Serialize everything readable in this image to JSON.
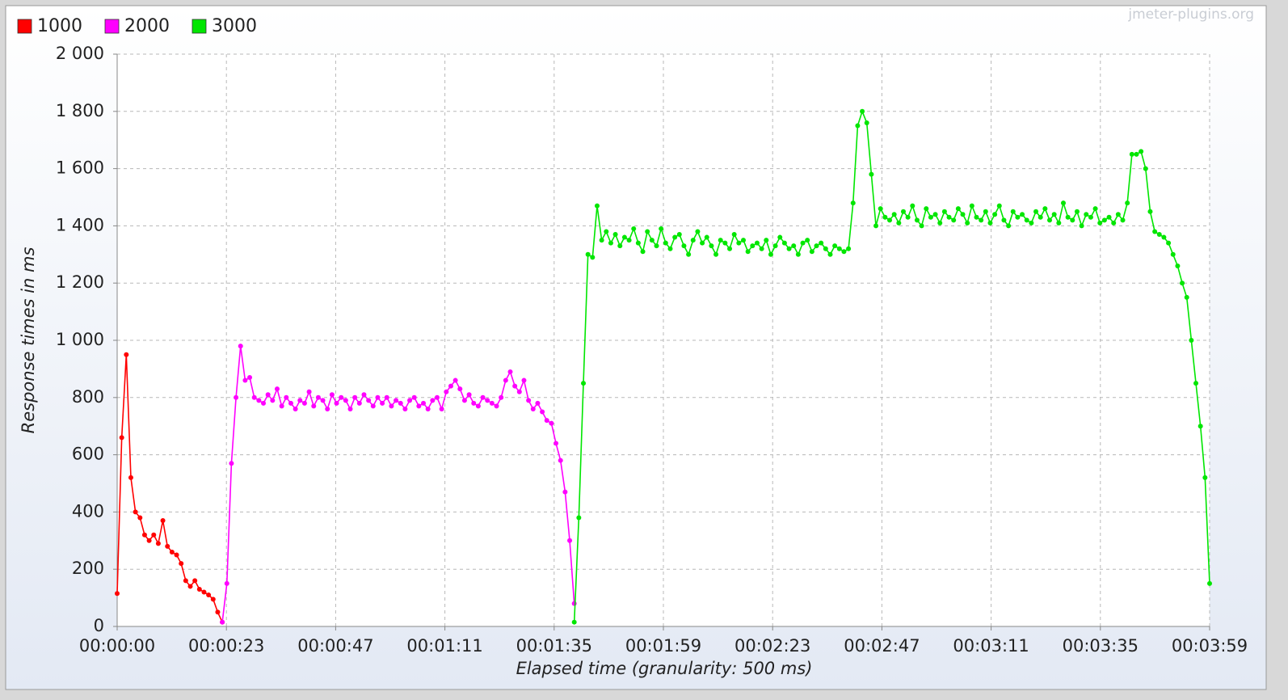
{
  "chart_data": {
    "type": "line",
    "watermark": "jmeter-plugins.org",
    "x_label": "Elapsed time (granularity: 500 ms)",
    "y_label": "Response times in ms",
    "xlim": [
      0,
      239
    ],
    "ylim": [
      0,
      2000
    ],
    "xticks": [
      {
        "value": 0,
        "label": "00:00:00"
      },
      {
        "value": 23.9,
        "label": "00:00:23"
      },
      {
        "value": 47.8,
        "label": "00:00:47"
      },
      {
        "value": 71.7,
        "label": "00:01:11"
      },
      {
        "value": 95.6,
        "label": "00:01:35"
      },
      {
        "value": 119.5,
        "label": "00:01:59"
      },
      {
        "value": 143.4,
        "label": "00:02:23"
      },
      {
        "value": 167.3,
        "label": "00:02:47"
      },
      {
        "value": 191.2,
        "label": "00:03:11"
      },
      {
        "value": 215.1,
        "label": "00:03:35"
      },
      {
        "value": 239,
        "label": "00:03:59"
      }
    ],
    "yticks": [
      0,
      200,
      400,
      600,
      800,
      {
        "value": 1000,
        "label": "1 000"
      },
      {
        "value": 1200,
        "label": "1 200"
      },
      {
        "value": 1400,
        "label": "1 400"
      },
      {
        "value": 1600,
        "label": "1 600"
      },
      {
        "value": 1800,
        "label": "1 800"
      },
      {
        "value": 2000,
        "label": "2 000"
      }
    ],
    "grid": true,
    "legend": "top-left",
    "series": [
      {
        "name": "1000",
        "color": "#ff0000",
        "x": [
          0,
          1,
          2,
          3,
          4,
          5,
          6,
          7,
          8,
          9,
          10,
          11,
          12,
          13,
          14,
          15,
          16,
          17,
          18,
          19,
          20,
          21,
          22,
          23
        ],
        "values": [
          115,
          660,
          950,
          520,
          400,
          380,
          320,
          300,
          320,
          290,
          370,
          280,
          260,
          250,
          220,
          160,
          140,
          160,
          130,
          120,
          110,
          95,
          50,
          15
        ]
      },
      {
        "name": "2000",
        "color": "#ff00ff",
        "x": [
          23,
          24,
          25,
          26,
          27,
          28,
          29,
          30,
          31,
          32,
          33,
          34,
          35,
          36,
          37,
          38,
          39,
          40,
          41,
          42,
          43,
          44,
          45,
          46,
          47,
          48,
          49,
          50,
          51,
          52,
          53,
          54,
          55,
          56,
          57,
          58,
          59,
          60,
          61,
          62,
          63,
          64,
          65,
          66,
          67,
          68,
          69,
          70,
          71,
          72,
          73,
          74,
          75,
          76,
          77,
          78,
          79,
          80,
          81,
          82,
          83,
          84,
          85,
          86,
          87,
          88,
          89,
          90,
          91,
          92,
          93,
          94,
          95,
          96,
          97,
          98,
          99,
          100
        ],
        "values": [
          15,
          150,
          570,
          800,
          980,
          860,
          870,
          800,
          790,
          780,
          810,
          790,
          830,
          770,
          800,
          780,
          760,
          790,
          780,
          820,
          770,
          800,
          790,
          760,
          810,
          780,
          800,
          790,
          760,
          800,
          780,
          810,
          790,
          770,
          800,
          780,
          800,
          770,
          790,
          780,
          760,
          790,
          800,
          770,
          780,
          760,
          790,
          800,
          760,
          820,
          840,
          860,
          830,
          790,
          810,
          780,
          770,
          800,
          790,
          780,
          770,
          800,
          860,
          890,
          840,
          820,
          860,
          790,
          760,
          780,
          750,
          720,
          710,
          640,
          580,
          470,
          300,
          80
        ]
      },
      {
        "name": "3000",
        "color": "#00e600",
        "x": [
          100,
          101,
          102,
          103,
          104,
          105,
          106,
          107,
          108,
          109,
          110,
          111,
          112,
          113,
          114,
          115,
          116,
          117,
          118,
          119,
          120,
          121,
          122,
          123,
          124,
          125,
          126,
          127,
          128,
          129,
          130,
          131,
          132,
          133,
          134,
          135,
          136,
          137,
          138,
          139,
          140,
          141,
          142,
          143,
          144,
          145,
          146,
          147,
          148,
          149,
          150,
          151,
          152,
          153,
          154,
          155,
          156,
          157,
          158,
          159,
          160,
          161,
          162,
          163,
          164,
          165,
          166,
          167,
          168,
          169,
          170,
          171,
          172,
          173,
          174,
          175,
          176,
          177,
          178,
          179,
          180,
          181,
          182,
          183,
          184,
          185,
          186,
          187,
          188,
          189,
          190,
          191,
          192,
          193,
          194,
          195,
          196,
          197,
          198,
          199,
          200,
          201,
          202,
          203,
          204,
          205,
          206,
          207,
          208,
          209,
          210,
          211,
          212,
          213,
          214,
          215,
          216,
          217,
          218,
          219,
          220,
          221,
          222,
          223,
          224,
          225,
          226,
          227,
          228,
          229,
          230,
          231,
          232,
          233,
          234,
          235,
          236,
          237,
          238,
          239
        ],
        "values": [
          15,
          380,
          850,
          1300,
          1290,
          1470,
          1350,
          1380,
          1340,
          1370,
          1330,
          1360,
          1350,
          1390,
          1340,
          1310,
          1380,
          1350,
          1330,
          1390,
          1340,
          1320,
          1360,
          1370,
          1330,
          1300,
          1350,
          1380,
          1340,
          1360,
          1330,
          1300,
          1350,
          1340,
          1320,
          1370,
          1340,
          1350,
          1310,
          1330,
          1340,
          1320,
          1350,
          1300,
          1330,
          1360,
          1340,
          1320,
          1330,
          1300,
          1340,
          1350,
          1310,
          1330,
          1340,
          1320,
          1300,
          1330,
          1320,
          1310,
          1320,
          1480,
          1750,
          1800,
          1760,
          1580,
          1400,
          1460,
          1430,
          1420,
          1440,
          1410,
          1450,
          1430,
          1470,
          1420,
          1400,
          1460,
          1430,
          1440,
          1410,
          1450,
          1430,
          1420,
          1460,
          1440,
          1410,
          1470,
          1430,
          1420,
          1450,
          1410,
          1440,
          1470,
          1420,
          1400,
          1450,
          1430,
          1440,
          1420,
          1410,
          1450,
          1430,
          1460,
          1420,
          1440,
          1410,
          1480,
          1430,
          1420,
          1450,
          1400,
          1440,
          1430,
          1460,
          1410,
          1420,
          1430,
          1410,
          1440,
          1420,
          1480,
          1650,
          1650,
          1660,
          1600,
          1450,
          1380,
          1370,
          1360,
          1340,
          1300,
          1260,
          1200,
          1150,
          1000,
          850,
          700,
          520,
          150
        ]
      }
    ]
  }
}
